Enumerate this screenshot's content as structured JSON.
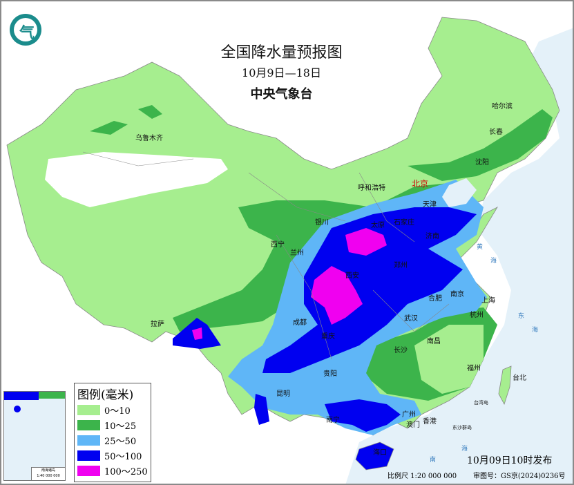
{
  "header": {
    "title": "全国降水量预报图",
    "date_range": "10月9日—18日",
    "issuer": "中央气象台"
  },
  "legend": {
    "title": "图例(毫米)",
    "items": [
      {
        "label": "0～10",
        "color": "#a6ee8f"
      },
      {
        "label": "10～25",
        "color": "#3cb44b"
      },
      {
        "label": "25～50",
        "color": "#5fb6f7"
      },
      {
        "label": "50～100",
        "color": "#0000f0"
      },
      {
        "label": "100～250",
        "color": "#f000f0"
      }
    ]
  },
  "cities": [
    {
      "name": "北京",
      "capital": true
    },
    {
      "name": "乌鲁木齐"
    },
    {
      "name": "哈尔滨"
    },
    {
      "name": "长春"
    },
    {
      "name": "沈阳"
    },
    {
      "name": "天津"
    },
    {
      "name": "呼和浩特"
    },
    {
      "name": "石家庄"
    },
    {
      "name": "太原"
    },
    {
      "name": "济南"
    },
    {
      "name": "银川"
    },
    {
      "name": "西宁"
    },
    {
      "name": "兰州"
    },
    {
      "name": "西安"
    },
    {
      "name": "郑州"
    },
    {
      "name": "合肥"
    },
    {
      "name": "南京"
    },
    {
      "name": "上海"
    },
    {
      "name": "杭州"
    },
    {
      "name": "武汉"
    },
    {
      "name": "成都"
    },
    {
      "name": "重庆"
    },
    {
      "name": "拉萨"
    },
    {
      "name": "长沙"
    },
    {
      "name": "南昌"
    },
    {
      "name": "福州"
    },
    {
      "name": "台北"
    },
    {
      "name": "贵阳"
    },
    {
      "name": "昆明"
    },
    {
      "name": "南宁"
    },
    {
      "name": "广州"
    },
    {
      "name": "澳门"
    },
    {
      "name": "香港"
    },
    {
      "name": "海口"
    }
  ],
  "seas": [
    "黄",
    "海",
    "东",
    "海",
    "南",
    "海"
  ],
  "islands": [
    "台湾岛",
    "东沙群岛"
  ],
  "inset": {
    "scale": "南海诸岛",
    "ratio": "1:40 000 000"
  },
  "footer": {
    "published": "10月09日10时发布",
    "scale": "比例尺 1:20 000 000",
    "review_no": "审图号：GS京(2024)0236号"
  },
  "logo_glyph": "气"
}
